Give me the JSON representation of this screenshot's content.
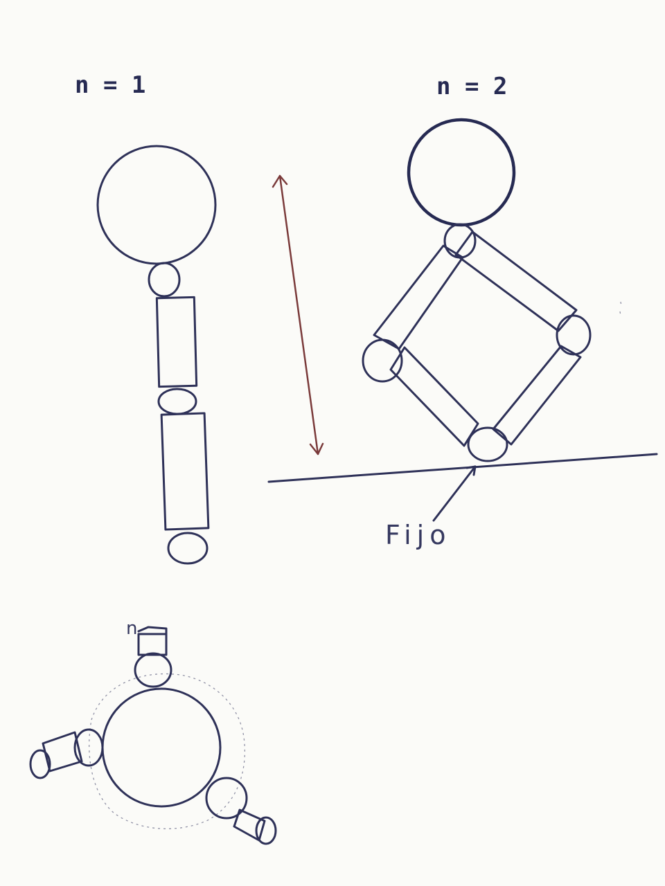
{
  "diagrams": {
    "n1": {
      "label": "n = 1"
    },
    "n2": {
      "label": "n = 2"
    },
    "ground": {
      "fixed_label": "Fijo"
    },
    "top_view": {
      "label": "n"
    }
  },
  "colors": {
    "ink": "#2e3158",
    "arrow": "#7a3a3a",
    "paper": "#fbfbf8"
  }
}
